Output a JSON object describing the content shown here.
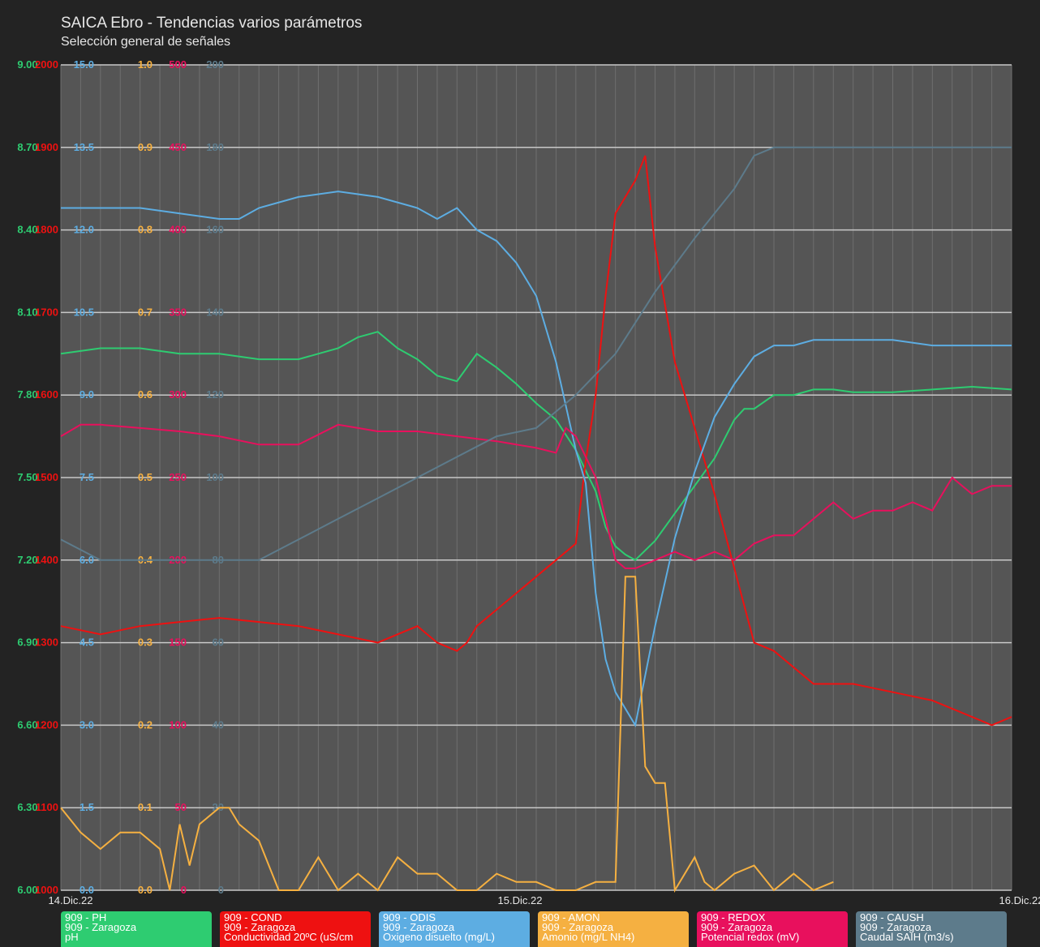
{
  "title": "SAICA Ebro - Tendencias varios parámetros",
  "subtitle": "Selección general de señales",
  "colors": {
    "background": "#232323",
    "plot_bg": "#555555",
    "grid_major": "#c8c8c8",
    "grid_minor": "#6f6f6f"
  },
  "legend": [
    {
      "line1": "909 - PH",
      "line2": "909 - Zaragoza",
      "line3": "pH",
      "color": "#2ecc71"
    },
    {
      "line1": "909 - COND",
      "line2": "909 - Zaragoza",
      "line3": "Conductividad 20ºC (uS/cm",
      "color": "#ee1111"
    },
    {
      "line1": "909 - ODIS",
      "line2": "909 - Zaragoza",
      "line3": "Oxigeno disuelto (mg/L)",
      "color": "#5dade2"
    },
    {
      "line1": "909 - AMON",
      "line2": "909 - Zaragoza",
      "line3": "Amonio (mg/L NH4)",
      "color": "#f5b041"
    },
    {
      "line1": "909 - REDOX",
      "line2": "909 - Zaragoza",
      "line3": "Potencial redox (mV)",
      "color": "#e8105d"
    },
    {
      "line1": "909 - CAUSH",
      "line2": "909 - Zaragoza",
      "line3": "Caudal SAIH (m3/s)",
      "color": "#5d7b8b"
    }
  ],
  "chart_data": {
    "type": "line",
    "title": "SAICA Ebro - Tendencias varios parámetros",
    "subtitle": "Selección general de señales",
    "x_labels": [
      "14.Dic.22",
      "15.Dic.22",
      "16.Dic.22"
    ],
    "x_range_hours": [
      0,
      48
    ],
    "grid": true,
    "y_axes": [
      {
        "name": "pH",
        "color": "#2ecc71",
        "ticks": [
          "6.00",
          "6.30",
          "6.60",
          "6.90",
          "7.20",
          "7.50",
          "7.80",
          "8.10",
          "8.40",
          "8.70",
          "9.00"
        ],
        "range": [
          6.0,
          9.0
        ]
      },
      {
        "name": "COND",
        "color": "#ee1111",
        "ticks": [
          "1000",
          "1100",
          "1200",
          "1300",
          "1400",
          "1500",
          "1600",
          "1700",
          "1800",
          "1900",
          "2000"
        ],
        "range": [
          1000,
          2000
        ]
      },
      {
        "name": "ODIS",
        "color": "#5dade2",
        "ticks": [
          "0.0",
          "1.5",
          "3.0",
          "4.5",
          "6.0",
          "7.5",
          "9.0",
          "10.5",
          "12.0",
          "13.5",
          "15.0"
        ],
        "range": [
          0,
          15
        ]
      },
      {
        "name": "AMON",
        "color": "#f5b041",
        "ticks": [
          "0.0",
          "0.1",
          "0.2",
          "0.3",
          "0.4",
          "0.5",
          "0.6",
          "0.7",
          "0.8",
          "0.9",
          "1.0"
        ],
        "range": [
          0,
          1
        ]
      },
      {
        "name": "REDOX",
        "color": "#e8105d",
        "ticks": [
          "0",
          "50",
          "100",
          "150",
          "200",
          "250",
          "300",
          "350",
          "400",
          "450",
          "500"
        ],
        "range": [
          0,
          500
        ]
      },
      {
        "name": "CAUSH",
        "color": "#5d7b8b",
        "ticks": [
          "0",
          "20",
          "40",
          "60",
          "80",
          "100",
          "120",
          "140",
          "160",
          "180",
          "200"
        ],
        "range": [
          0,
          200
        ]
      }
    ],
    "series": [
      {
        "name": "909 - PH",
        "color": "#2ecc71",
        "axis": 0,
        "x": [
          0,
          2,
          4,
          6,
          8,
          10,
          12,
          14,
          15,
          16,
          17,
          18,
          19,
          20,
          21,
          22,
          23,
          24,
          25,
          26,
          27,
          27.5,
          28,
          28.5,
          29,
          30,
          31,
          32,
          33,
          34,
          34.5,
          35,
          36,
          37,
          38,
          39,
          40,
          42,
          44,
          46,
          48
        ],
        "y": [
          7.95,
          7.97,
          7.97,
          7.95,
          7.95,
          7.93,
          7.93,
          7.97,
          8.01,
          8.03,
          7.97,
          7.93,
          7.87,
          7.85,
          7.95,
          7.9,
          7.84,
          7.77,
          7.71,
          7.6,
          7.45,
          7.32,
          7.25,
          7.22,
          7.2,
          7.27,
          7.37,
          7.47,
          7.57,
          7.71,
          7.75,
          7.75,
          7.8,
          7.8,
          7.82,
          7.82,
          7.81,
          7.81,
          7.82,
          7.83,
          7.82
        ]
      },
      {
        "name": "909 - COND",
        "color": "#ee1111",
        "axis": 1,
        "x": [
          0,
          2,
          4,
          6,
          8,
          10,
          12,
          14,
          16,
          18,
          19,
          20,
          20.5,
          21,
          22,
          23,
          24,
          25,
          26,
          26.5,
          27,
          27.5,
          28,
          29,
          29.5,
          30,
          31,
          32,
          33,
          34,
          35,
          36,
          38,
          40,
          42,
          44,
          46,
          47,
          48
        ],
        "y": [
          1320,
          1310,
          1320,
          1325,
          1330,
          1325,
          1320,
          1310,
          1300,
          1320,
          1300,
          1290,
          1300,
          1320,
          1340,
          1360,
          1380,
          1400,
          1420,
          1520,
          1600,
          1720,
          1820,
          1860,
          1890,
          1780,
          1640,
          1560,
          1480,
          1390,
          1300,
          1290,
          1250,
          1250,
          1240,
          1230,
          1210,
          1200,
          1210
        ]
      },
      {
        "name": "909 - ODIS",
        "color": "#5dade2",
        "axis": 2,
        "x": [
          0,
          2,
          4,
          6,
          8,
          9,
          10,
          12,
          14,
          16,
          18,
          19,
          20,
          21,
          22,
          23,
          24,
          25,
          26,
          26.5,
          27,
          27.5,
          28,
          29,
          30,
          31,
          32,
          33,
          34,
          35,
          36,
          37,
          38,
          39,
          40,
          42,
          44,
          46,
          47,
          48
        ],
        "y": [
          12.4,
          12.4,
          12.4,
          12.3,
          12.2,
          12.2,
          12.4,
          12.6,
          12.7,
          12.6,
          12.4,
          12.2,
          12.4,
          12.0,
          11.8,
          11.4,
          10.8,
          9.6,
          8.0,
          7.4,
          5.4,
          4.2,
          3.6,
          3.0,
          4.8,
          6.4,
          7.6,
          8.6,
          9.2,
          9.7,
          9.9,
          9.9,
          10.0,
          10.0,
          10.0,
          10.0,
          9.9,
          9.9,
          9.9,
          9.9
        ]
      },
      {
        "name": "909 - AMON",
        "color": "#f5b041",
        "axis": 3,
        "x": [
          0,
          1,
          2,
          3,
          4,
          5,
          5.5,
          6,
          6.5,
          7,
          8,
          8.5,
          9,
          10,
          11,
          12,
          13,
          14,
          15,
          16,
          17,
          18,
          19,
          20,
          21,
          22,
          23,
          24,
          25,
          26,
          27,
          28,
          28.5,
          29,
          29.5,
          30,
          30.5,
          31,
          32,
          32.5,
          33,
          34,
          35,
          36,
          37,
          38,
          39
        ],
        "y": [
          0.1,
          0.07,
          0.05,
          0.07,
          0.07,
          0.05,
          0.0,
          0.08,
          0.03,
          0.08,
          0.1,
          0.1,
          0.08,
          0.06,
          0.0,
          0.0,
          0.04,
          0.0,
          0.02,
          0.0,
          0.04,
          0.02,
          0.02,
          0.0,
          0.0,
          0.02,
          0.01,
          0.01,
          0.0,
          0.0,
          0.01,
          0.01,
          0.38,
          0.38,
          0.15,
          0.13,
          0.13,
          0.0,
          0.04,
          0.01,
          0.0,
          0.02,
          0.03,
          0.0,
          0.02,
          0.0,
          0.01
        ]
      },
      {
        "name": "909 - REDOX",
        "color": "#e8105d",
        "axis": 4,
        "x": [
          0,
          1,
          2,
          4,
          6,
          8,
          10,
          12,
          14,
          15,
          16,
          18,
          20,
          22,
          23,
          24,
          25,
          25.5,
          26,
          27,
          28,
          28.5,
          29,
          30,
          31,
          32,
          33,
          34,
          35,
          36,
          37,
          38,
          39,
          40,
          41,
          42,
          43,
          44,
          45,
          46,
          47,
          48
        ],
        "y": [
          275,
          282,
          282,
          280,
          278,
          275,
          270,
          270,
          282,
          280,
          278,
          278,
          275,
          272,
          270,
          268,
          265,
          280,
          275,
          250,
          200,
          195,
          195,
          200,
          205,
          200,
          205,
          200,
          210,
          215,
          215,
          225,
          235,
          225,
          230,
          230,
          235,
          230,
          250,
          240,
          245,
          245
        ]
      },
      {
        "name": "909 - CAUSH",
        "color": "#5d7b8b",
        "axis": 5,
        "x": [
          0,
          2,
          4,
          6,
          8,
          10,
          12,
          14,
          16,
          18,
          20,
          22,
          24,
          26,
          28,
          30,
          32,
          34,
          35,
          36,
          37,
          38,
          40,
          44,
          48
        ],
        "y": [
          85,
          80,
          80,
          80,
          80,
          80,
          85,
          90,
          95,
          100,
          105,
          110,
          112,
          120,
          130,
          145,
          158,
          170,
          178,
          180,
          180,
          180,
          180,
          180,
          180
        ]
      }
    ]
  }
}
